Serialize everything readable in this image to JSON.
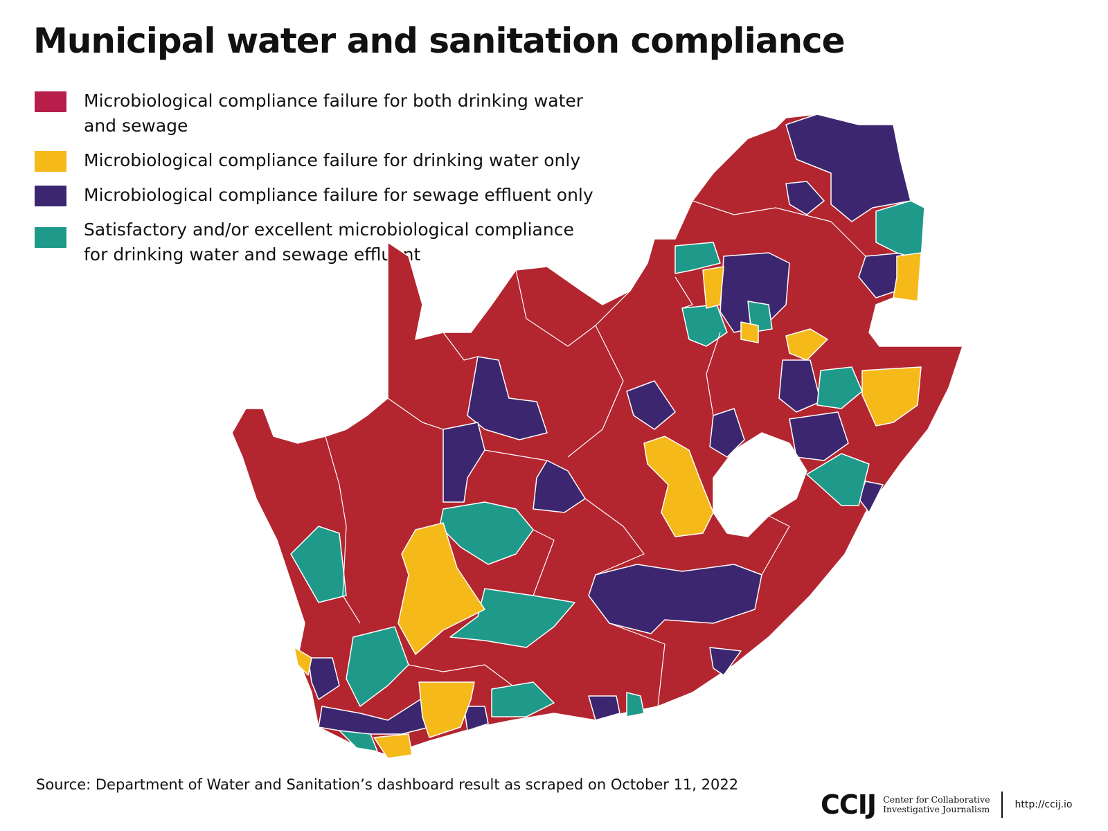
{
  "title": "Municipal water and sanitation compliance",
  "legend": [
    {
      "label": "Microbiological compliance failure for both drinking water and sewage",
      "color": "#b81e4a"
    },
    {
      "label": "Microbiological compliance failure for drinking water only",
      "color": "#f5b91a"
    },
    {
      "label": "Microbiological compliance failure for sewage effluent only",
      "color": "#3d2670"
    },
    {
      "label": "Satisfactory and/or excellent microbiological compliance for drinking water and sewage effluent",
      "color": "#1f9a8a"
    }
  ],
  "map_colors": {
    "both": "#b3252f",
    "drinking": "#f5b91a",
    "sewage": "#3d2670",
    "satisfactory": "#1f9a8a"
  },
  "source": "Source: Department of Water and Sanitation’s dashboard result as scraped on October 11, 2022",
  "logo": {
    "mark": "CCIJ",
    "org_line1": "Center for Collaborative",
    "org_line2": "Investigative Journalism",
    "url": "http://ccij.io"
  }
}
